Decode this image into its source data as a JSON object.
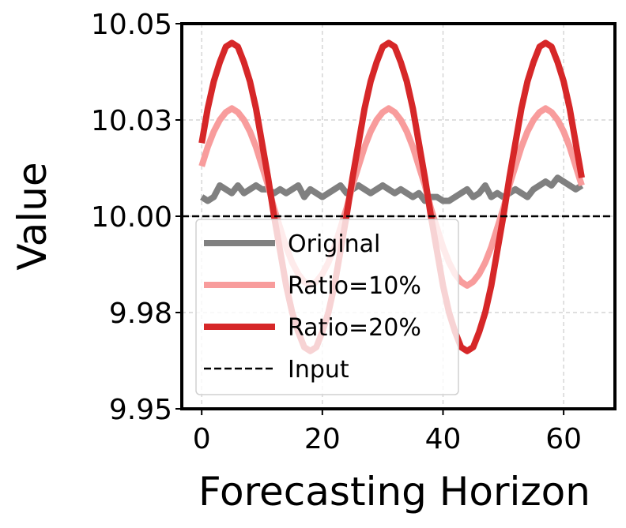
{
  "chart_data": {
    "type": "line",
    "xlabel": "Forecasting Horizon",
    "ylabel": "Value",
    "x": [
      0,
      1,
      2,
      3,
      4,
      5,
      6,
      7,
      8,
      9,
      10,
      11,
      12,
      13,
      14,
      15,
      16,
      17,
      18,
      19,
      20,
      21,
      22,
      23,
      24,
      25,
      26,
      27,
      28,
      29,
      30,
      31,
      32,
      33,
      34,
      35,
      36,
      37,
      38,
      39,
      40,
      41,
      42,
      43,
      44,
      45,
      46,
      47,
      48,
      49,
      50,
      51,
      52,
      53,
      54,
      55,
      56,
      57,
      58,
      59,
      60,
      61,
      62,
      63
    ],
    "series": [
      {
        "name": "Original",
        "color": "#808080",
        "values": [
          10.005,
          10.004,
          10.005,
          10.008,
          10.007,
          10.006,
          10.008,
          10.006,
          10.007,
          10.008,
          10.007,
          10.007,
          10.006,
          10.007,
          10.006,
          10.007,
          10.008,
          10.005,
          10.007,
          10.006,
          10.005,
          10.006,
          10.007,
          10.008,
          10.006,
          10.007,
          10.008,
          10.007,
          10.006,
          10.007,
          10.008,
          10.007,
          10.006,
          10.007,
          10.006,
          10.005,
          10.006,
          10.004,
          10.005,
          10.005,
          10.004,
          10.004,
          10.005,
          10.006,
          10.007,
          10.005,
          10.006,
          10.008,
          10.005,
          10.006,
          10.005,
          10.006,
          10.007,
          10.006,
          10.005,
          10.007,
          10.008,
          10.009,
          10.008,
          10.01,
          10.009,
          10.008,
          10.007,
          10.008
        ]
      },
      {
        "name": "Ratio=10%",
        "color": "#f89c9c",
        "values": [
          10.013,
          10.018,
          10.022,
          10.025,
          10.027,
          10.028,
          10.027,
          10.025,
          10.022,
          10.018,
          10.013,
          10.008,
          10.002,
          9.997,
          9.992,
          9.988,
          9.985,
          9.983,
          9.982,
          9.983,
          9.985,
          9.988,
          9.992,
          9.997,
          10.002,
          10.008,
          10.013,
          10.018,
          10.022,
          10.025,
          10.027,
          10.028,
          10.027,
          10.025,
          10.022,
          10.018,
          10.013,
          10.008,
          10.002,
          9.997,
          9.992,
          9.988,
          9.985,
          9.983,
          9.982,
          9.983,
          9.985,
          9.988,
          9.992,
          9.997,
          10.002,
          10.008,
          10.013,
          10.018,
          10.022,
          10.025,
          10.027,
          10.028,
          10.027,
          10.025,
          10.022,
          10.018,
          10.013,
          10.008
        ]
      },
      {
        "name": "Ratio=20%",
        "color": "#d62728",
        "values": [
          10.019,
          10.028,
          10.035,
          10.04,
          10.044,
          10.045,
          10.044,
          10.04,
          10.035,
          10.028,
          10.019,
          10.01,
          10.0,
          9.991,
          9.982,
          9.975,
          9.97,
          9.966,
          9.965,
          9.966,
          9.97,
          9.975,
          9.982,
          9.991,
          10.0,
          10.01,
          10.019,
          10.028,
          10.035,
          10.04,
          10.044,
          10.045,
          10.044,
          10.04,
          10.035,
          10.028,
          10.019,
          10.01,
          10.0,
          9.991,
          9.982,
          9.975,
          9.97,
          9.966,
          9.965,
          9.966,
          9.97,
          9.975,
          9.982,
          9.991,
          10.0,
          10.01,
          10.019,
          10.028,
          10.035,
          10.04,
          10.044,
          10.045,
          10.044,
          10.04,
          10.035,
          10.028,
          10.019,
          10.01
        ]
      }
    ],
    "hline": {
      "name": "Input",
      "color": "#000000",
      "value": 10.0,
      "dashed": true
    },
    "xlim": [
      -3.3,
      68.5
    ],
    "ylim": [
      9.95,
      10.05
    ],
    "xticks": [
      0,
      20,
      40,
      60
    ],
    "yticks": [
      9.95,
      {
        "value": 9.975,
        "label": "9.98"
      },
      {
        "value": 10.0,
        "label": "10.00"
      },
      {
        "value": 10.025,
        "label": "10.03"
      },
      10.05
    ],
    "grid": true,
    "legend": "lower left"
  }
}
